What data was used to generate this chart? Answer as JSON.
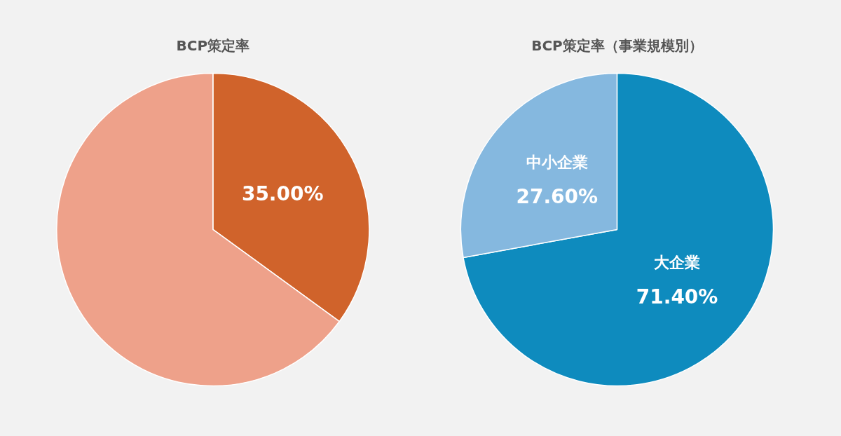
{
  "chart_data": [
    {
      "type": "pie",
      "title": "BCP策定率",
      "categories": [
        null,
        null
      ],
      "values": [
        35,
        65
      ],
      "colors": [
        "#d0632b",
        "#eea18a"
      ],
      "value_labels": [
        "35.00%",
        null
      ]
    },
    {
      "type": "pie",
      "title": "BCP策定率（事業規模別）",
      "categories": [
        "大企業",
        "中小企業"
      ],
      "values": [
        71.4,
        27.6
      ],
      "colors": [
        "#0e8bbe",
        "#85b8df"
      ],
      "value_labels": [
        "71.40%",
        "27.60%"
      ]
    }
  ]
}
